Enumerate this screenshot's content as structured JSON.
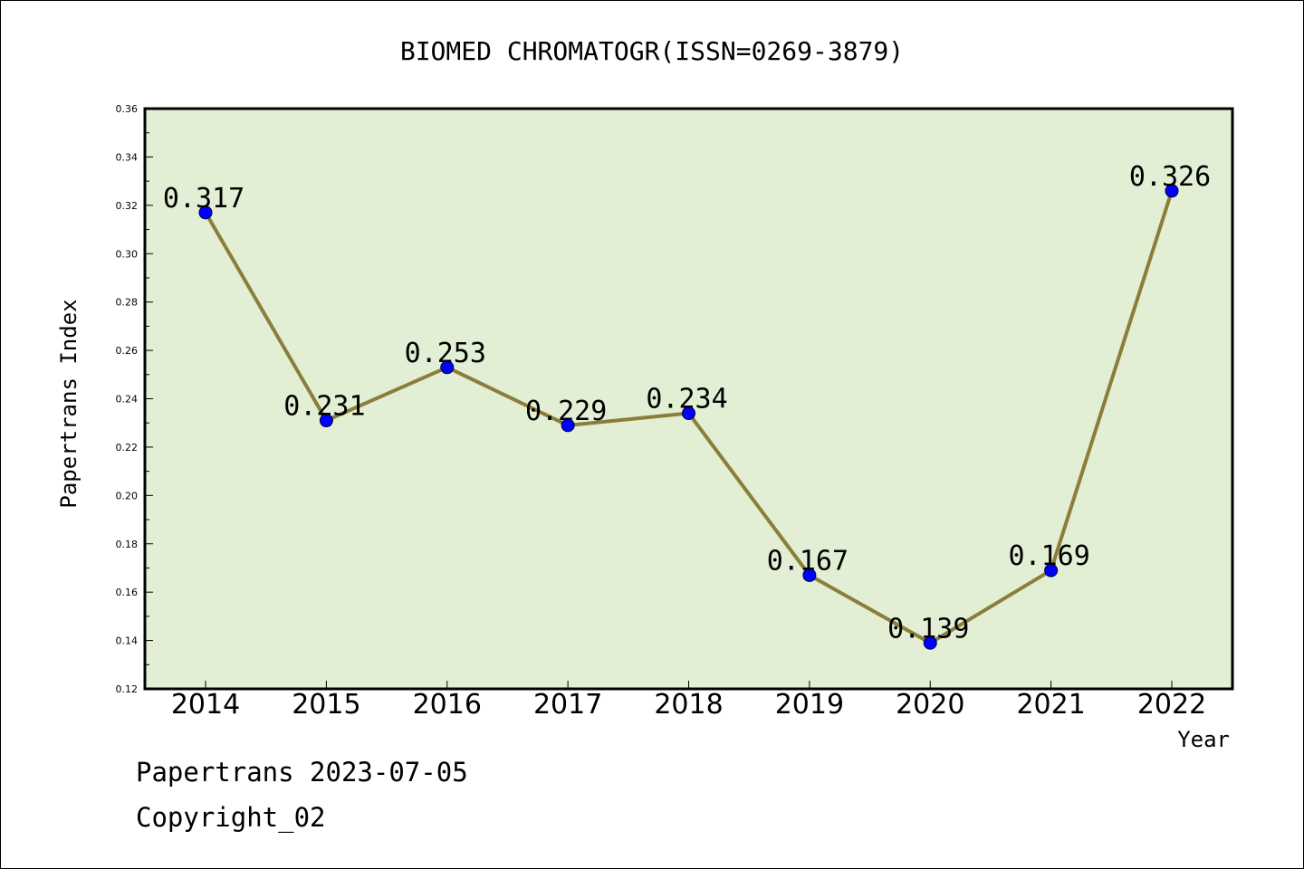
{
  "chart_data": {
    "type": "line",
    "title": "BIOMED CHROMATOGR(ISSN=0269-3879)",
    "xlabel": "Year",
    "ylabel": "Papertrans Index",
    "categories": [
      "2014",
      "2015",
      "2016",
      "2017",
      "2018",
      "2019",
      "2020",
      "2021",
      "2022"
    ],
    "values": [
      0.317,
      0.231,
      0.253,
      0.229,
      0.234,
      0.167,
      0.139,
      0.169,
      0.326
    ],
    "data_labels": [
      "0.317",
      "0.231",
      "0.253",
      "0.229",
      "0.234",
      "0.167",
      "0.139",
      "0.169",
      "0.326"
    ],
    "ylim": [
      0.12,
      0.36
    ],
    "yticks": [
      "0.12",
      "0.14",
      "0.16",
      "0.18",
      "0.20",
      "0.22",
      "0.24",
      "0.26",
      "0.28",
      "0.30",
      "0.32",
      "0.34",
      "0.36"
    ],
    "grid": false,
    "colors": {
      "plot_background": "#e2efd5",
      "line": "#8b7d3a",
      "marker": "#0000ff"
    }
  },
  "footer": {
    "line1": "Papertrans 2023-07-05",
    "line2": "Copyright_02"
  }
}
